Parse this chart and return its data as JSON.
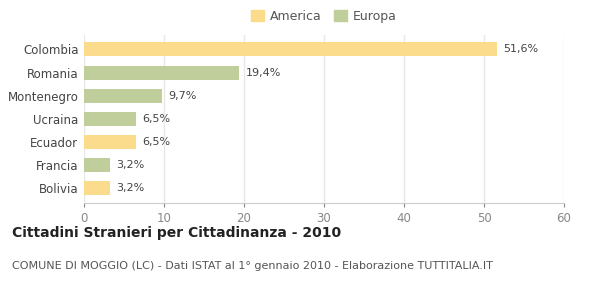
{
  "categories": [
    "Colombia",
    "Romania",
    "Montenegro",
    "Ucraina",
    "Ecuador",
    "Francia",
    "Bolivia"
  ],
  "values": [
    51.6,
    19.4,
    9.7,
    6.5,
    6.5,
    3.2,
    3.2
  ],
  "colors": [
    "#FADC8C",
    "#BFCE9A",
    "#BFCE9A",
    "#BFCE9A",
    "#FADC8C",
    "#BFCE9A",
    "#FADC8C"
  ],
  "labels": [
    "51,6%",
    "19,4%",
    "9,7%",
    "6,5%",
    "6,5%",
    "3,2%",
    "3,2%"
  ],
  "legend": [
    {
      "label": "America",
      "color": "#FADC8C"
    },
    {
      "label": "Europa",
      "color": "#BFCE9A"
    }
  ],
  "xlim": [
    0,
    60
  ],
  "xticks": [
    0,
    10,
    20,
    30,
    40,
    50,
    60
  ],
  "title": "Cittadini Stranieri per Cittadinanza - 2010",
  "subtitle": "COMUNE DI MOGGIO (LC) - Dati ISTAT al 1° gennaio 2010 - Elaborazione TUTTITALIA.IT",
  "background_color": "#ffffff",
  "grid_color": "#e8e8e8",
  "bar_height": 0.6,
  "title_fontsize": 10,
  "subtitle_fontsize": 8,
  "label_fontsize": 8,
  "tick_fontsize": 8.5,
  "legend_fontsize": 9
}
